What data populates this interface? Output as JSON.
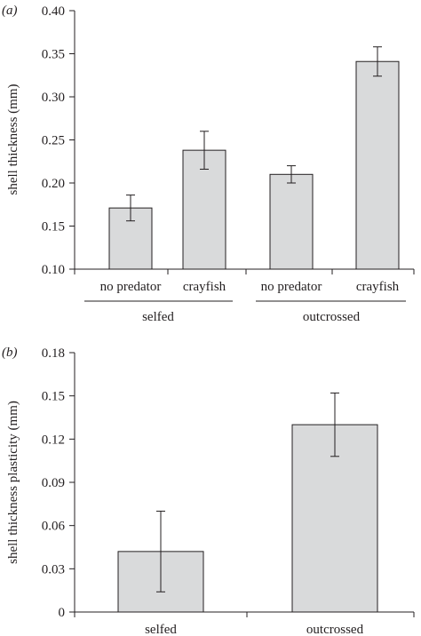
{
  "chart_data": [
    {
      "type": "bar",
      "panel_label": "(a)",
      "ylabel": "shell thickness (mm)",
      "ylim": [
        0.1,
        0.4
      ],
      "yticks": [
        "0.10",
        "0.15",
        "0.20",
        "0.25",
        "0.30",
        "0.35",
        "0.40"
      ],
      "categories": [
        "no predator",
        "crayfish",
        "no predator",
        "crayfish"
      ],
      "groups": [
        "selfed",
        "outcrossed"
      ],
      "values": [
        0.171,
        0.238,
        0.21,
        0.341
      ],
      "error": [
        0.015,
        0.022,
        0.01,
        0.017
      ],
      "bar_color": "#d9dadb",
      "grid": false
    },
    {
      "type": "bar",
      "panel_label": "(b)",
      "ylabel": "shell thickness plasticity (mm)",
      "ylim": [
        0,
        0.18
      ],
      "yticks": [
        "0",
        "0.03",
        "0.06",
        "0.09",
        "0.12",
        "0.15",
        "0.18"
      ],
      "categories": [
        "selfed",
        "outcrossed"
      ],
      "values": [
        0.042,
        0.13
      ],
      "error": [
        0.028,
        0.022
      ],
      "bar_color": "#d9dadb",
      "grid": false
    }
  ]
}
